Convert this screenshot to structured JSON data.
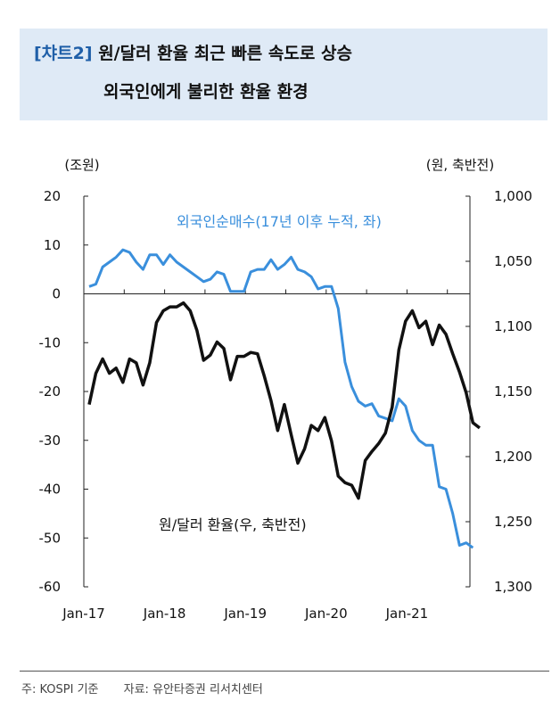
{
  "title": {
    "tag": "[챠트2]",
    "line1": "원/달러 환율 최근 빠른 속도로 상승",
    "line2": "외국인에게 불리한 환율 환경"
  },
  "chart_data": {
    "type": "line",
    "left_axis": {
      "unit_label": "(조원)",
      "ylim": [
        -60,
        20
      ],
      "ticks": [
        20,
        10,
        0,
        -10,
        -20,
        -30,
        -40,
        -50,
        -60
      ]
    },
    "right_axis": {
      "unit_label": "(원, 축반전)",
      "ylim": [
        1000,
        1300
      ],
      "inverted": true,
      "ticks": [
        "1,000",
        "1,050",
        "1,100",
        "1,150",
        "1,200",
        "1,250",
        "1,300"
      ]
    },
    "x_tick_labels": [
      "Jan-17",
      "Jan-18",
      "Jan-19",
      "Jan-20",
      "Jan-21"
    ],
    "x_start": "2017-01",
    "series": [
      {
        "name": "외국인순매수(17년 이후 누적, 좌)",
        "axis": "left",
        "color": "#3a8fdc",
        "values": [
          1.5,
          2,
          5.5,
          6.5,
          7.5,
          9,
          8.5,
          6.5,
          5,
          8,
          8,
          6,
          8,
          6.5,
          5.5,
          4.5,
          3.5,
          2.5,
          3,
          4.5,
          4,
          0.5,
          0.5,
          0.5,
          4.5,
          5,
          5,
          7,
          5,
          6,
          7.5,
          5,
          4.5,
          3.5,
          1,
          1.5,
          1.5,
          -3,
          -14,
          -19,
          -22,
          -23,
          -22.5,
          -25,
          -25.5,
          -26,
          -21.5,
          -23,
          -28,
          -30,
          -31,
          -31,
          -39.5,
          -40,
          -45,
          -51.5,
          -51,
          -52
        ]
      },
      {
        "name": "원/달러 환율(우, 축반전)",
        "axis": "right",
        "color": "#111111",
        "values": [
          1160,
          1136,
          1125,
          1136,
          1132,
          1143,
          1125,
          1128,
          1145,
          1128,
          1097,
          1088,
          1085,
          1085,
          1082,
          1088,
          1103,
          1126,
          1122,
          1112,
          1117,
          1141,
          1123,
          1123,
          1120,
          1121,
          1138,
          1157,
          1180,
          1160,
          1183,
          1205,
          1194,
          1176,
          1180,
          1170,
          1188,
          1215,
          1220,
          1222,
          1232,
          1203,
          1196,
          1190,
          1182,
          1162,
          1118,
          1096,
          1088,
          1101,
          1096,
          1114,
          1099,
          1106,
          1121,
          1135,
          1151,
          1174,
          1178
        ]
      }
    ],
    "annotations": [
      {
        "text": "외국인순매수(17년 이후 누적, 좌)",
        "color": "#3a8fdc"
      },
      {
        "text": "원/달러 환율(우, 축반전)",
        "color": "#111111"
      }
    ],
    "zero_line": true,
    "grid": false
  },
  "footnote": {
    "note": "주: KOSPI 기준",
    "source": "자료: 유안타증권 리서치센터"
  }
}
